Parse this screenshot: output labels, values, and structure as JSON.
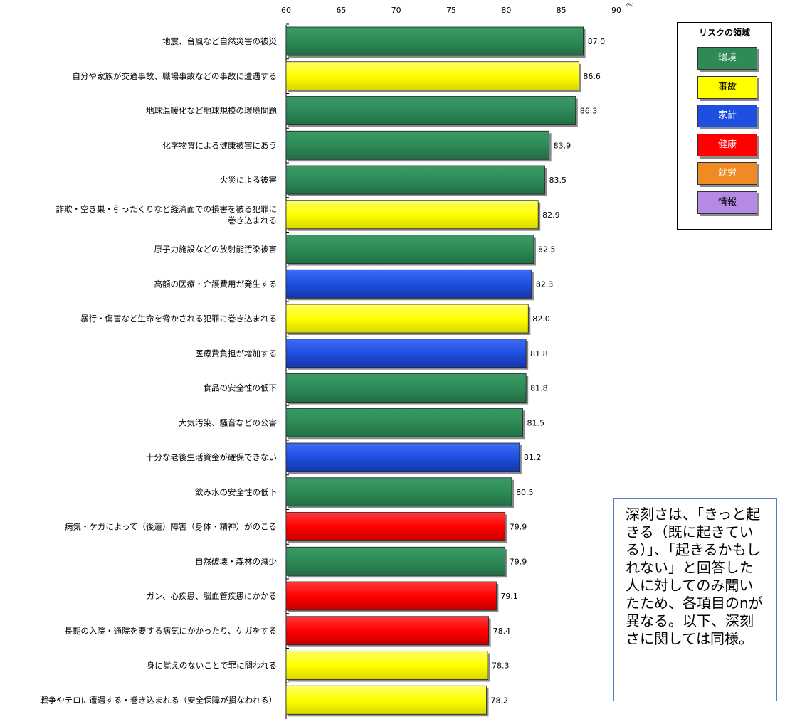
{
  "chart_data": {
    "type": "bar",
    "orientation": "horizontal",
    "unit": "(%)",
    "xlim": [
      60,
      90
    ],
    "x_ticks": [
      "60",
      "65",
      "70",
      "75",
      "80",
      "85",
      "90"
    ],
    "categories": [
      "地震、台風など自然災害の被災",
      "自分や家族が交通事故、職場事故などの事故に遭遇する",
      "地球温暖化など地球規模の環境問題",
      "化学物質による健康被害にあう",
      "火災による被害",
      "詐欺・空き巣・引ったくりなど経済面での損害を被る犯罪に\n巻き込まれる",
      "原子力施設などの放射能汚染被害",
      "高額の医療・介護費用が発生する",
      "暴行・傷害など生命を脅かされる犯罪に巻き込まれる",
      "医療費負担が増加する",
      "食品の安全性の低下",
      "大気汚染、騒音などの公害",
      "十分な老後生活資金が確保できない",
      "飲み水の安全性の低下",
      "病気・ケガによって（後遺）障害（身体・精神）がのこる",
      "自然破壊・森林の減少",
      "ガン、心疾患、脳血管疾患にかかる",
      "長期の入院・通院を要する病気にかかったり、ケガをする",
      "身に覚えのないことで罪に問われる",
      "戦争やテロに遭遇する・巻き込まれる（安全保障が損なわれる）"
    ],
    "values": [
      87.0,
      86.6,
      86.3,
      83.9,
      83.5,
      82.9,
      82.5,
      82.3,
      82.0,
      81.8,
      81.8,
      81.5,
      81.2,
      80.5,
      79.9,
      79.9,
      79.1,
      78.4,
      78.3,
      78.2
    ],
    "value_labels": [
      "87.0",
      "86.6",
      "86.3",
      "83.9",
      "83.5",
      "82.9",
      "82.5",
      "82.3",
      "82.0",
      "81.8",
      "81.8",
      "81.5",
      "81.2",
      "80.5",
      "79.9",
      "79.9",
      "79.1",
      "78.4",
      "78.3",
      "78.2"
    ],
    "domains": [
      "環境",
      "事故",
      "環境",
      "環境",
      "環境",
      "事故",
      "環境",
      "家計",
      "事故",
      "家計",
      "環境",
      "環境",
      "家計",
      "環境",
      "健康",
      "環境",
      "健康",
      "健康",
      "事故",
      "事故"
    ],
    "legend": {
      "title": "リスクの領域",
      "position": "top-right",
      "items": [
        {
          "label": "環境",
          "color": "#2e8b57",
          "text_color": "#ffffff"
        },
        {
          "label": "事故",
          "color": "#ffff00",
          "text_color": "#000000"
        },
        {
          "label": "家計",
          "color": "#1f4fe0",
          "text_color": "#ffffff"
        },
        {
          "label": "健康",
          "color": "#ff0000",
          "text_color": "#ffffff"
        },
        {
          "label": "就労",
          "color": "#f08a24",
          "text_color": "#ffffff"
        },
        {
          "label": "情報",
          "color": "#b58ae6",
          "text_color": "#000000"
        }
      ]
    },
    "grid": false
  },
  "note": "深刻さは、「きっと起きる（既に起きている）」、「起きるかもしれない」と回答した人に対してのみ聞いたため、各項目のnが異なる。以下、深刻さに関しては同様。"
}
